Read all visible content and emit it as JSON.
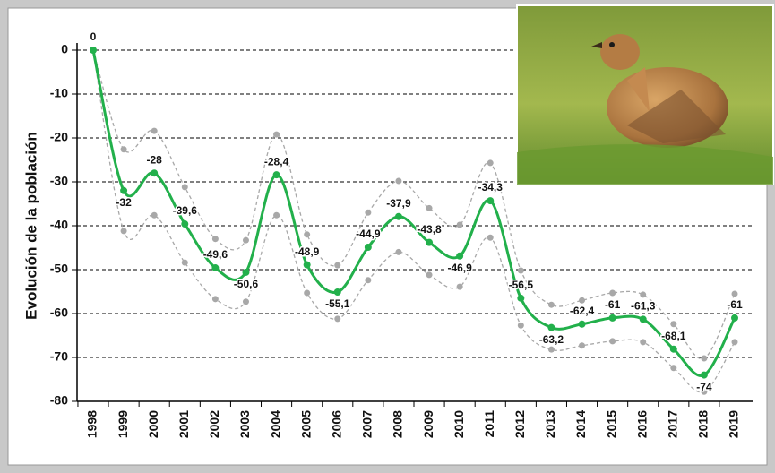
{
  "chart_data": {
    "type": "line",
    "y_label": "Evolución de la población",
    "categories": [
      "1998",
      "1999",
      "2000",
      "2001",
      "2002",
      "2003",
      "2004",
      "2005",
      "2006",
      "2007",
      "2008",
      "2009",
      "2010",
      "2011",
      "2012",
      "2013",
      "2014",
      "2015",
      "2016",
      "2017",
      "2018",
      "2019"
    ],
    "series": [
      {
        "color": "#22b04b",
        "values": [
          0,
          -32,
          -28,
          -39.6,
          -49.6,
          -50.6,
          -28.4,
          -48.9,
          -55.1,
          -44.9,
          -37.9,
          -43.8,
          -46.9,
          -34.3,
          -56.5,
          -63.2,
          -62.4,
          -61,
          -61.3,
          -68.1,
          -74,
          -61
        ],
        "value_labels": [
          "0",
          "-32",
          "-28",
          "-39,6",
          "-49,6",
          "-50,6",
          "-28,4",
          "-48,9",
          "-55,1",
          "-44,9",
          "-37,9",
          "-43,8",
          "-46,9",
          "-34,3",
          "-56,5",
          "-63,2",
          "-62,4",
          "-61",
          "-61,3",
          "-68,1",
          "-74",
          "-61"
        ]
      },
      {
        "color": "#a8a8a8",
        "values": [
          0,
          -22.6,
          -18.4,
          -31.2,
          -43,
          -43.3,
          -19.2,
          -42,
          -49,
          -37,
          -29.8,
          -36,
          -39.8,
          -25.7,
          -50.2,
          -58,
          -57,
          -55.3,
          -55.7,
          -62.4,
          -70.2,
          -55.5
        ]
      },
      {
        "color": "#a8a8a8",
        "values": [
          0,
          -41.2,
          -37.6,
          -48.4,
          -56.7,
          -57.3,
          -37.6,
          -55.3,
          -61.2,
          -52.4,
          -46,
          -51.2,
          -53.9,
          -42.7,
          -62.7,
          -68.2,
          -67.3,
          -66.3,
          -66.5,
          -72.4,
          -77.8,
          -66.5
        ]
      }
    ],
    "ylim": [
      -80,
      0
    ],
    "yticks": [
      0,
      -10,
      -20,
      -30,
      -40,
      -50,
      -60,
      -70,
      -80
    ],
    "grid": true
  }
}
